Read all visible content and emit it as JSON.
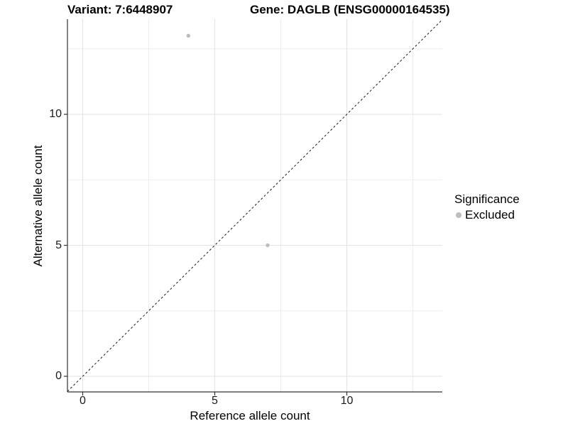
{
  "figure": {
    "background": "#ffffff",
    "title_left": "Variant: 7:6448907",
    "title_right": "Gene: DAGLB (ENSG00000164535)"
  },
  "chart_data": {
    "type": "scatter",
    "title": "Variant: 7:6448907   Gene: DAGLB (ENSG00000164535)",
    "xlabel": "Reference allele count",
    "ylabel": "Alternative allele count",
    "xlim": [
      -0.6,
      13.6
    ],
    "ylim": [
      -0.6,
      13.6
    ],
    "x_ticks": [
      0,
      5,
      10
    ],
    "y_ticks": [
      0,
      5,
      10
    ],
    "x_minor_ticks": [
      2.5,
      7.5,
      12.5
    ],
    "y_minor_ticks": [
      2.5,
      7.5,
      12.5
    ],
    "grid": true,
    "series": [
      {
        "name": "Excluded",
        "marker": "circle",
        "color": "#bdbdbd",
        "points": [
          {
            "x": 4,
            "y": 13
          },
          {
            "x": 7,
            "y": 5
          }
        ]
      }
    ],
    "reference_line": {
      "type": "identity",
      "equation": "y = x",
      "style": "dashed",
      "color": "#1a1a1a"
    },
    "legend": {
      "title": "Significance",
      "position": "right",
      "items": [
        {
          "label": "Excluded",
          "marker_color": "#bdbdbd"
        }
      ]
    },
    "colors": {
      "grid_major": "#e2e2e2",
      "grid_minor": "#ededed",
      "axis_line": "#333333",
      "tick_mark": "#333333",
      "point": "#bdbdbd"
    }
  }
}
